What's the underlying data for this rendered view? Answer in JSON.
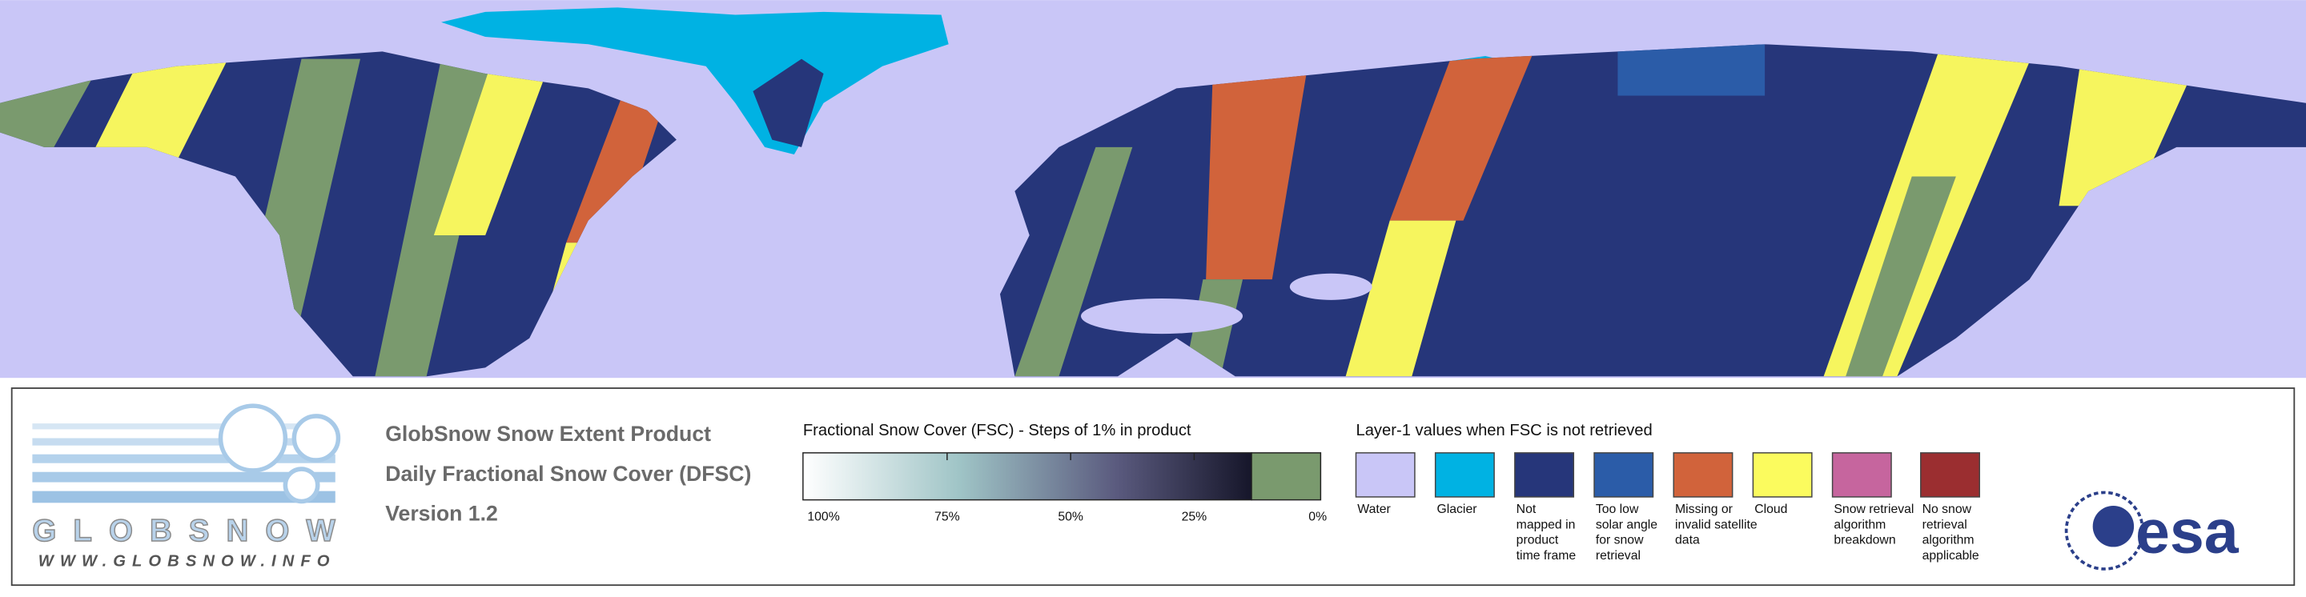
{
  "header": {
    "product": "GlobSnow Snow Extent Product",
    "subtitle": "Daily Fractional Snow Cover (DFSC)",
    "version": "Version 1.2"
  },
  "logo": {
    "name": "GLOBSNOW",
    "url": "WWW.GLOBSNOW.INFO",
    "agency": "esa"
  },
  "fsc_legend": {
    "title": "Fractional Snow Cover (FSC) - Steps of 1% in product",
    "ticks": [
      "100%",
      "75%",
      "50%",
      "25%",
      "0%"
    ]
  },
  "layer_legend": {
    "title": "Layer-1 values when FSC is not retrieved",
    "items": [
      {
        "color": "#c9c6f7",
        "label": [
          "Water"
        ]
      },
      {
        "color": "#00b2e3",
        "label": [
          "Glacier"
        ]
      },
      {
        "color": "#26367a",
        "label": [
          "Not",
          "mapped in",
          "product",
          "time frame"
        ]
      },
      {
        "color": "#2b5ca8",
        "label": [
          "Too low",
          "solar angle",
          "for snow",
          "retrieval"
        ]
      },
      {
        "color": "#d1633b",
        "label": [
          "Missing or",
          "invalid satellite",
          "data"
        ]
      },
      {
        "color": "#fbfb5e",
        "label": [
          "Cloud"
        ]
      },
      {
        "color": "#c6659e",
        "label": [
          "Snow retrieval",
          "algorithm",
          "breakdown"
        ]
      },
      {
        "color": "#9b2e30",
        "label": [
          "No snow",
          "retrieval",
          "algorithm",
          "applicable"
        ]
      }
    ]
  }
}
